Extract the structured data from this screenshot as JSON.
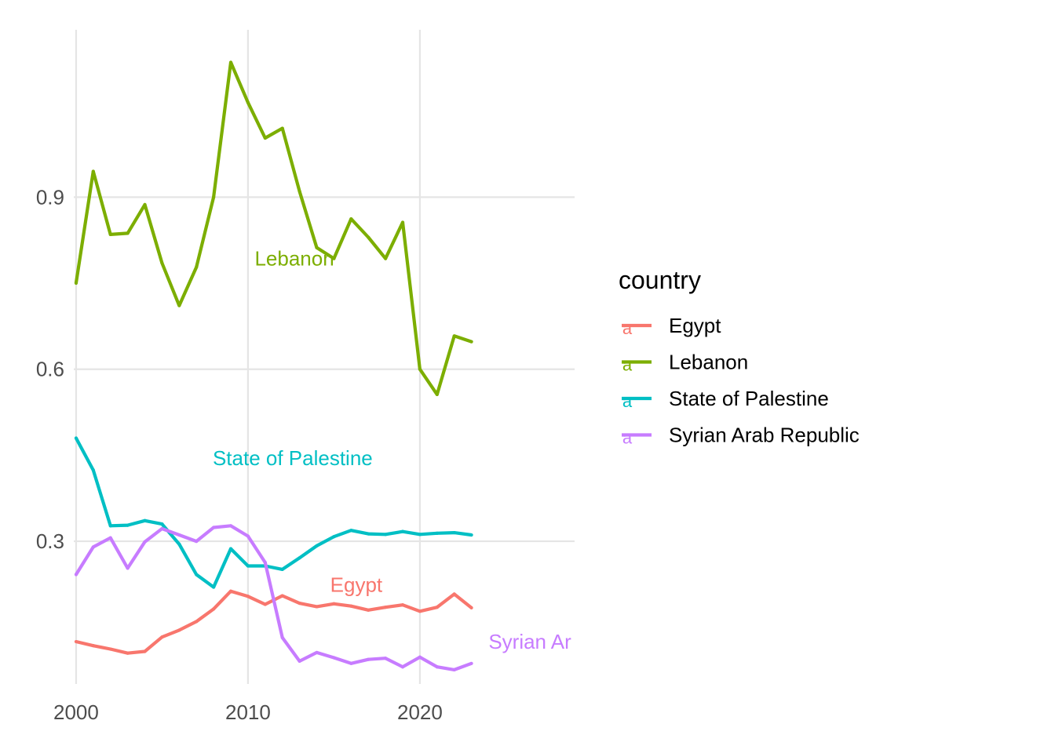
{
  "chart_data": {
    "type": "line",
    "title": "",
    "xlabel": "",
    "ylabel": "",
    "xlim": [
      1999.5,
      2029
    ],
    "ylim": [
      0.043,
      1.2
    ],
    "x_ticks": [
      2000,
      2010,
      2020
    ],
    "x_tick_labels": [
      "2000",
      "2010",
      "2020"
    ],
    "y_ticks": [
      0.3,
      0.6,
      0.9
    ],
    "y_tick_labels": [
      "0.3",
      "0.6",
      "0.9"
    ],
    "grid": true,
    "legend": {
      "title": "country",
      "position": "right"
    },
    "x": [
      2000,
      2001,
      2002,
      2003,
      2004,
      2005,
      2006,
      2007,
      2008,
      2009,
      2010,
      2011,
      2012,
      2013,
      2014,
      2015,
      2016,
      2017,
      2018,
      2019,
      2020,
      2021,
      2022,
      2023
    ],
    "series": [
      {
        "name": "Egypt",
        "color": "#F8766D",
        "values": [
          0.125,
          0.118,
          0.112,
          0.105,
          0.108,
          0.133,
          0.145,
          0.16,
          0.182,
          0.213,
          0.204,
          0.19,
          0.205,
          0.192,
          0.186,
          0.191,
          0.187,
          0.18,
          0.185,
          0.189,
          0.178,
          0.185,
          0.208,
          0.184
        ],
        "label": {
          "text": "Egypt",
          "x": 2016.3,
          "y": 0.224
        }
      },
      {
        "name": "Lebanon",
        "color": "#7CAE00",
        "values": [
          0.75,
          0.945,
          0.835,
          0.837,
          0.887,
          0.785,
          0.711,
          0.778,
          0.9,
          1.135,
          1.065,
          1.003,
          1.02,
          0.91,
          0.812,
          0.793,
          0.862,
          0.83,
          0.793,
          0.856,
          0.6,
          0.556,
          0.658,
          0.648
        ],
        "label": {
          "text": "Lebanon",
          "x": 2012.7,
          "y": 0.793
        }
      },
      {
        "name": "State of Palestine",
        "color": "#00BFC4",
        "values": [
          0.48,
          0.424,
          0.327,
          0.328,
          0.336,
          0.33,
          0.295,
          0.242,
          0.22,
          0.287,
          0.257,
          0.257,
          0.251,
          0.271,
          0.292,
          0.308,
          0.319,
          0.313,
          0.312,
          0.317,
          0.312,
          0.314,
          0.315,
          0.311
        ],
        "label": {
          "text": "State of Palestine",
          "x": 2012.6,
          "y": 0.445
        }
      },
      {
        "name": "Syrian Arab Republic",
        "color": "#C77CFF",
        "values": [
          0.242,
          0.29,
          0.306,
          0.253,
          0.299,
          0.322,
          0.311,
          0.3,
          0.324,
          0.327,
          0.309,
          0.263,
          0.132,
          0.091,
          0.106,
          0.097,
          0.087,
          0.094,
          0.096,
          0.081,
          0.098,
          0.081,
          0.076,
          0.087
        ],
        "label": {
          "text": "Syrian Ar",
          "x": 2026.4,
          "y": 0.125
        }
      }
    ]
  }
}
